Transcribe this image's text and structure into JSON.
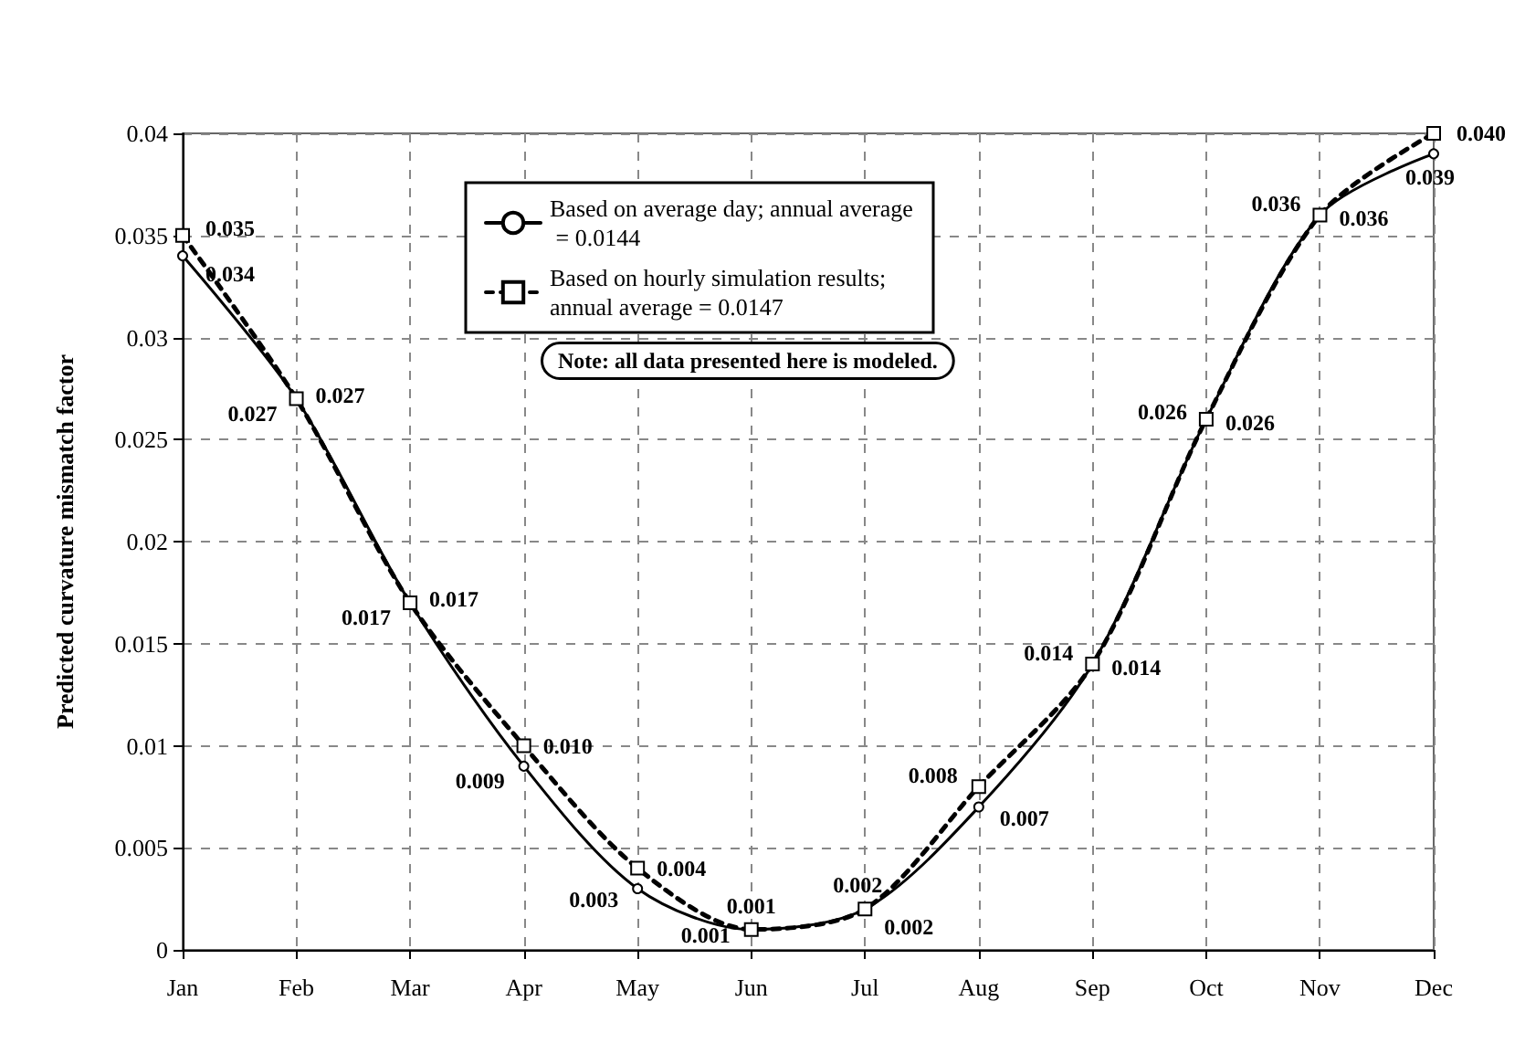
{
  "chart_data": {
    "type": "line",
    "ylabel": "Predicted curvature mismatch factor",
    "categories": [
      "Jan",
      "Feb",
      "Mar",
      "Apr",
      "May",
      "Jun",
      "Jul",
      "Aug",
      "Sep",
      "Oct",
      "Nov",
      "Dec"
    ],
    "series": [
      {
        "name": "Based on average day; annual average = 0.0144",
        "color": "#000000",
        "marker": "circle",
        "line_style": "solid",
        "values": [
          0.034,
          0.027,
          0.017,
          0.009,
          0.003,
          0.001,
          0.002,
          0.007,
          0.014,
          0.026,
          0.036,
          0.039
        ],
        "value_labels": [
          "0.034",
          "0.027",
          "0.017",
          "0.009",
          "0.003",
          "0.001",
          "0.002",
          "0.007",
          "0.014",
          "0.026",
          "0.036",
          "0.039"
        ]
      },
      {
        "name": "Based on hourly simulation results; annual average = 0.0147",
        "color": "#000000",
        "marker": "square",
        "line_style": "dashed",
        "values": [
          0.035,
          0.027,
          0.017,
          0.01,
          0.004,
          0.001,
          0.002,
          0.008,
          0.014,
          0.026,
          0.036,
          0.04
        ],
        "value_labels": [
          "0.035",
          "0.027",
          "0.017",
          "0.010",
          "0.004",
          "0.001",
          "0.002",
          "0.008",
          "0.014",
          "0.026",
          "0.036",
          "0.040"
        ]
      }
    ],
    "ylim": [
      0,
      0.04
    ],
    "yticks": [
      0,
      0.005,
      0.01,
      0.015,
      0.02,
      0.025,
      0.03,
      0.035,
      0.04
    ],
    "grid": true,
    "legend": "top",
    "annotations": [
      "Note: all data presented here is modeled."
    ]
  }
}
